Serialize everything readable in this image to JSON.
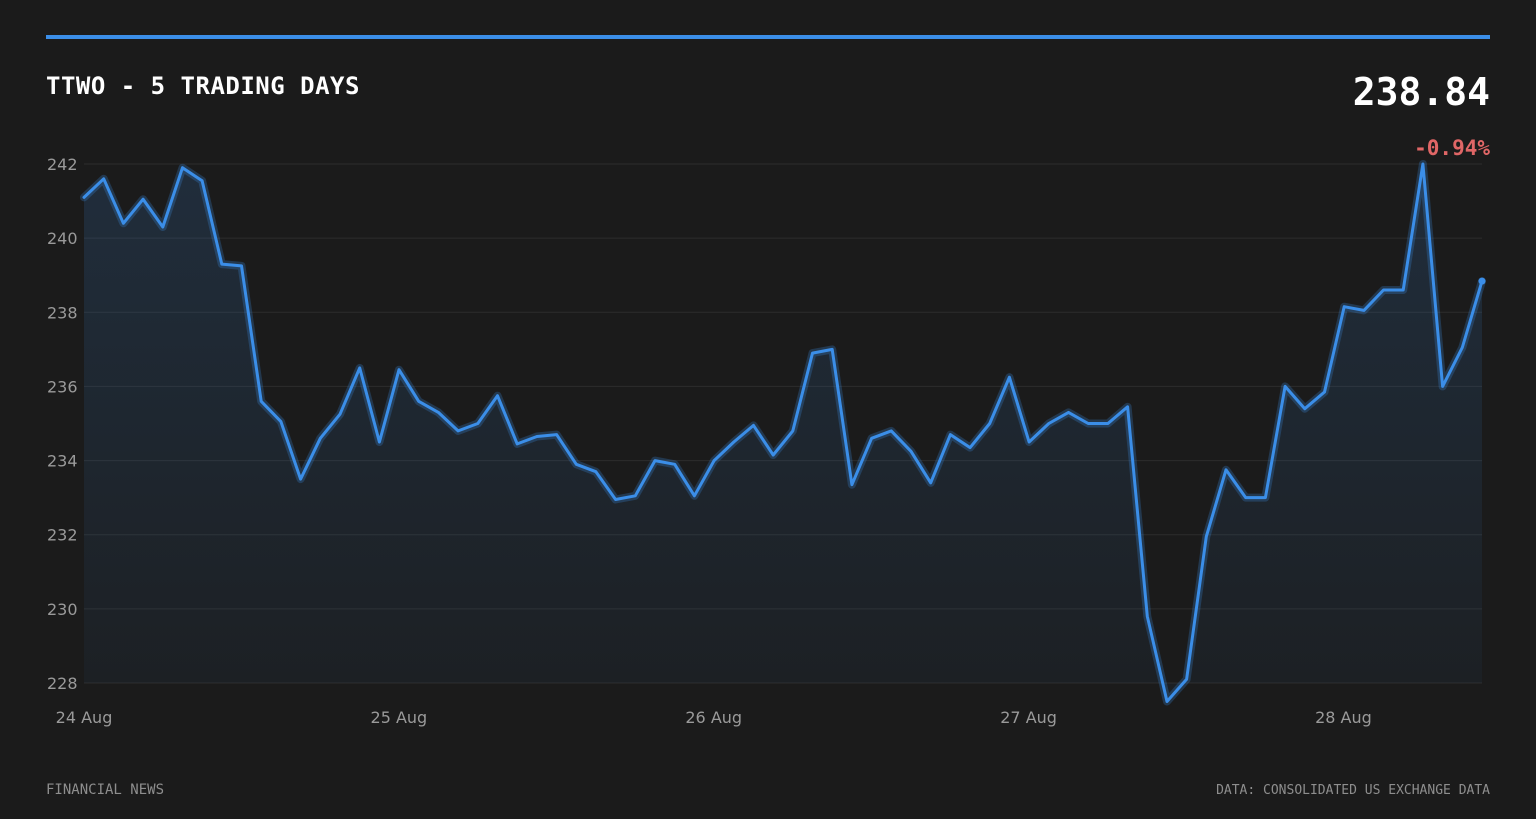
{
  "header": {
    "title": "TTWO - 5 TRADING DAYS",
    "price": "238.84",
    "change": "-0.94%"
  },
  "footer": {
    "source_left": "FINANCIAL NEWS",
    "source_right": "DATA: CONSOLIDATED US EXCHANGE DATA"
  },
  "colors": {
    "background": "#1b1b1b",
    "accent": "#3b8ee8",
    "line": "#3b8ee8",
    "negative": "#e06666",
    "grid": "#2c2c2c",
    "tick_text": "#9a9a9a"
  },
  "chart_data": {
    "type": "area",
    "title": "TTWO - 5 TRADING DAYS",
    "xlabel": "",
    "ylabel": "",
    "ylim": [
      228,
      242
    ],
    "yticks": [
      242,
      240,
      238,
      236,
      234,
      232,
      230,
      228
    ],
    "xticks": [
      {
        "x": 0,
        "label": "24 Aug"
      },
      {
        "x": 1,
        "label": "25 Aug"
      },
      {
        "x": 2,
        "label": "26 Aug"
      },
      {
        "x": 3,
        "label": "27 Aug"
      },
      {
        "x": 4,
        "label": "28 Aug"
      }
    ],
    "xlim": [
      0,
      4.44
    ],
    "grid": true,
    "legend": "none",
    "series": [
      {
        "values": [
          241.1,
          241.6,
          240.4,
          241.05,
          240.3,
          241.9,
          241.55,
          239.3,
          239.25,
          235.6,
          235.05,
          233.5,
          234.6,
          235.25,
          236.5,
          234.5,
          236.45,
          235.6,
          235.3,
          234.8,
          235.0,
          235.75,
          234.45,
          234.65,
          234.7,
          233.9,
          233.7,
          232.95,
          233.05,
          234.0,
          233.9,
          233.05,
          234.0,
          234.5,
          234.95,
          234.15,
          234.8,
          236.9,
          237.0,
          233.35,
          234.6,
          234.8,
          234.25,
          233.4,
          234.7,
          234.35,
          235.0,
          236.25,
          234.5,
          235.0,
          235.3,
          235.0,
          235.0,
          235.45,
          229.8,
          227.5,
          228.1,
          231.95,
          233.75,
          233.0,
          233.0,
          236.0,
          235.4,
          235.85,
          238.15,
          238.05,
          238.6,
          238.6,
          242.0,
          236.0,
          237.05,
          238.84
        ]
      }
    ]
  }
}
